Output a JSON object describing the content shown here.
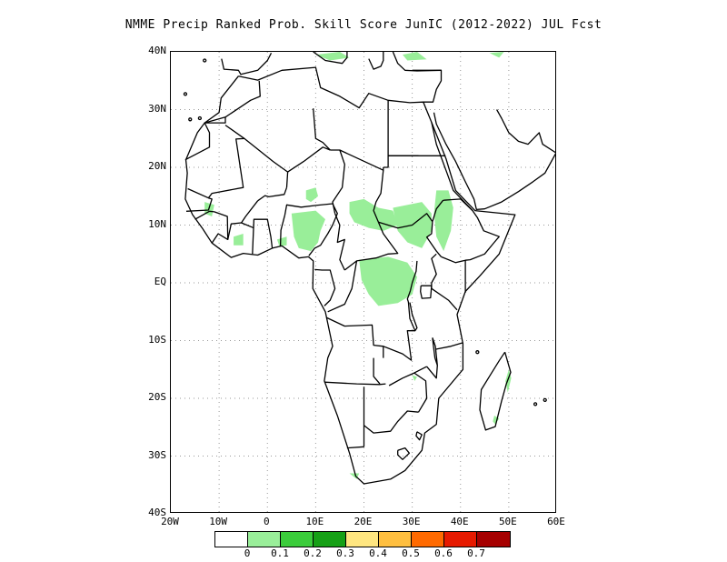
{
  "title": "NMME Precip Ranked Prob. Skill Score JunIC (2012-2022) JUL Fcst",
  "map": {
    "lon_range": [
      -20,
      60
    ],
    "lat_range": [
      -40,
      40
    ],
    "lat_ticks": [
      {
        "lat": 40,
        "label": "40N"
      },
      {
        "lat": 30,
        "label": "30N"
      },
      {
        "lat": 20,
        "label": "20N"
      },
      {
        "lat": 10,
        "label": "10N"
      },
      {
        "lat": 0,
        "label": "EQ"
      },
      {
        "lat": -10,
        "label": "10S"
      },
      {
        "lat": -20,
        "label": "20S"
      },
      {
        "lat": -30,
        "label": "30S"
      },
      {
        "lat": -40,
        "label": "40S"
      }
    ],
    "lon_ticks": [
      {
        "lon": -20,
        "label": "20W"
      },
      {
        "lon": -10,
        "label": "10W"
      },
      {
        "lon": 0,
        "label": "0"
      },
      {
        "lon": 10,
        "label": "10E"
      },
      {
        "lon": 20,
        "label": "20E"
      },
      {
        "lon": 30,
        "label": "30E"
      },
      {
        "lon": 40,
        "label": "40E"
      },
      {
        "lon": 50,
        "label": "50E"
      },
      {
        "lon": 60,
        "label": "60E"
      }
    ],
    "grid": "dotted",
    "skill_color": "#99ee99",
    "coast_color": "#000000"
  },
  "legend": {
    "colors": [
      "#ffffff",
      "#99ee99",
      "#3bcc3b",
      "#16a016",
      "#ffe680",
      "#ffbf40",
      "#ff6a00",
      "#e61a00",
      "#a60000"
    ],
    "labels": [
      "0",
      "0.1",
      "0.2",
      "0.3",
      "0.4",
      "0.5",
      "0.6",
      "0.7"
    ]
  }
}
